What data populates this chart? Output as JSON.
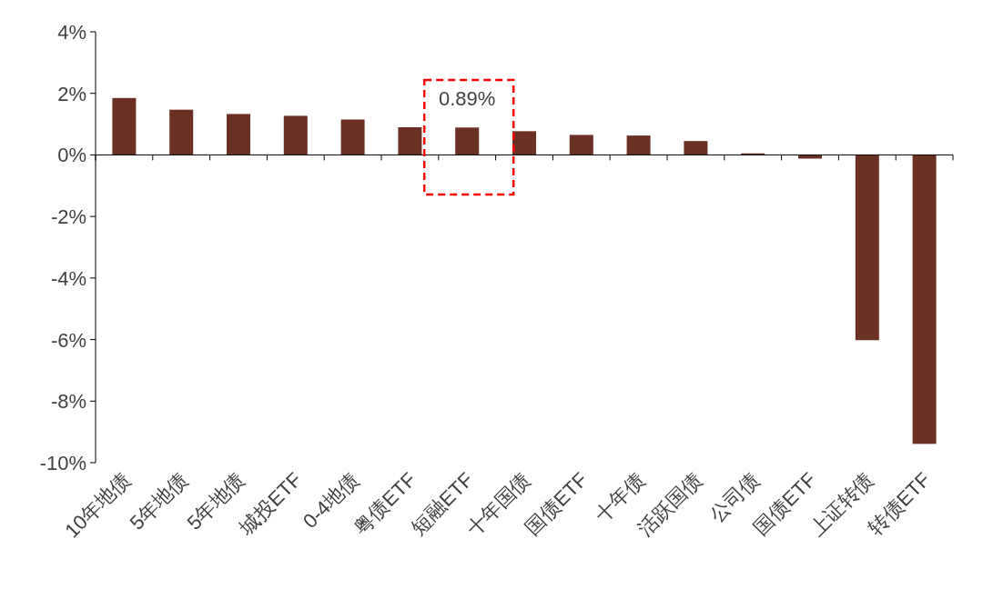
{
  "chart_data": {
    "type": "bar",
    "categories": [
      "10年地债",
      "5年地债",
      "5年地债",
      "城投ETF",
      "0-4地债",
      "粤债ETF",
      "短融ETF",
      "十年国债",
      "国债ETF",
      "十年债",
      "活跃国债",
      "公司债",
      "国债ETF",
      "上证转债",
      "转债ETF"
    ],
    "values": [
      1.85,
      1.47,
      1.33,
      1.27,
      1.15,
      0.9,
      0.89,
      0.77,
      0.65,
      0.63,
      0.45,
      0.05,
      -0.12,
      -6.02,
      -9.39
    ],
    "value_labels": [
      null,
      null,
      null,
      null,
      null,
      null,
      "0.89%",
      null,
      null,
      null,
      null,
      null,
      null,
      null,
      null
    ],
    "color": "#6b3024",
    "ylim": [
      -10,
      4
    ],
    "yticks": [
      {
        "value": -10,
        "label": "-10%"
      },
      {
        "value": -8,
        "label": "-8%"
      },
      {
        "value": -6,
        "label": "-6%"
      },
      {
        "value": -4,
        "label": "-4%"
      },
      {
        "value": -2,
        "label": "-2%"
      },
      {
        "value": 0,
        "label": "0%"
      },
      {
        "value": 2,
        "label": "2%"
      },
      {
        "value": 4,
        "label": "4%"
      }
    ]
  }
}
